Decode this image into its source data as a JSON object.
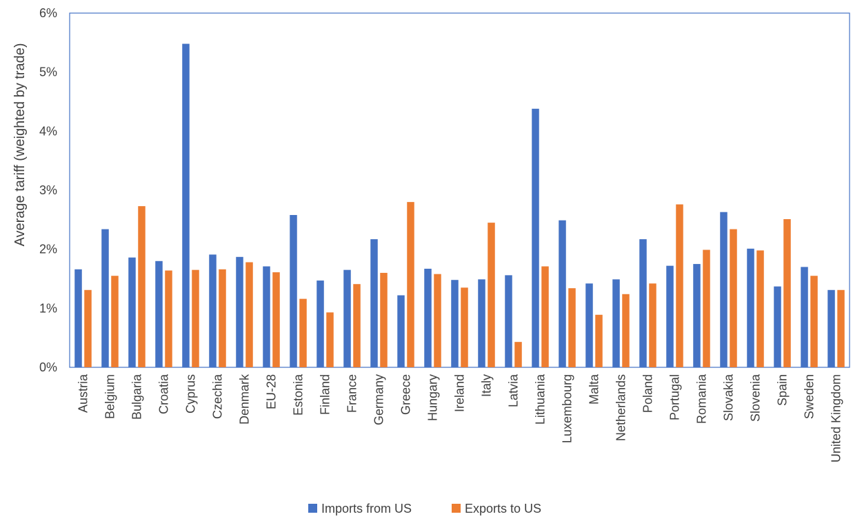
{
  "chart_data": {
    "type": "bar",
    "title": "",
    "xlabel": "",
    "ylabel": "Average tariff (weighted by trade)",
    "ylim": [
      0,
      6
    ],
    "yticks": [
      "0%",
      "1%",
      "2%",
      "3%",
      "4%",
      "5%",
      "6%"
    ],
    "grid": false,
    "legend_position": "bottom",
    "categories": [
      "Austria",
      "Belgium",
      "Bulgaria",
      "Croatia",
      "Cyprus",
      "Czechia",
      "Denmark",
      "EU-28",
      "Estonia",
      "Finland",
      "France",
      "Germany",
      "Greece",
      "Hungary",
      "Ireland",
      "Italy",
      "Latvia",
      "Lithuania",
      "Luxembourg",
      "Malta",
      "Netherlands",
      "Poland",
      "Portugal",
      "Romania",
      "Slovakia",
      "Slovenia",
      "Spain",
      "Sweden",
      "United Kingdom"
    ],
    "series": [
      {
        "name": "Imports from US",
        "color": "#4472C4",
        "values": [
          1.66,
          2.34,
          1.86,
          1.8,
          5.48,
          1.91,
          1.87,
          1.71,
          2.58,
          1.47,
          1.65,
          2.17,
          1.22,
          1.67,
          1.48,
          1.49,
          1.56,
          4.38,
          2.49,
          1.42,
          1.49,
          2.17,
          1.72,
          1.75,
          2.63,
          2.01,
          1.37,
          1.7,
          1.31
        ]
      },
      {
        "name": "Exports to US",
        "color": "#ED7D31",
        "values": [
          1.31,
          1.55,
          2.73,
          1.64,
          1.65,
          1.66,
          1.78,
          1.61,
          1.16,
          0.93,
          1.41,
          1.6,
          2.8,
          1.58,
          1.35,
          2.45,
          0.43,
          1.71,
          1.34,
          0.89,
          1.24,
          1.42,
          2.76,
          1.99,
          2.34,
          1.98,
          2.51,
          1.55,
          1.31
        ]
      }
    ]
  }
}
